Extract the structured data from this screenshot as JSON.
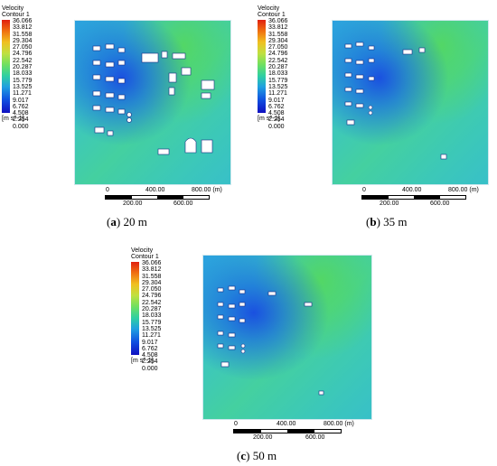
{
  "legend": {
    "title_line1": "Velocity",
    "title_line2": "Contour 1",
    "values": [
      "36.066",
      "33.812",
      "31.558",
      "29.304",
      "27.050",
      "24.796",
      "22.542",
      "20.287",
      "18.033",
      "15.779",
      "13.525",
      "11.271",
      "9.017",
      "6.762",
      "4.508",
      "2.254",
      "0.000"
    ],
    "unit": "[m s^-1]"
  },
  "scale": {
    "top_ticks": [
      "0",
      "400.00",
      "800.00"
    ],
    "unit": "(m)",
    "bottom_ticks": [
      "200.00",
      "600.00"
    ]
  },
  "panels": [
    {
      "letter": "a",
      "label": "20 m"
    },
    {
      "letter": "b",
      "label": "35 m"
    },
    {
      "letter": "c",
      "label": "50 m"
    }
  ]
}
